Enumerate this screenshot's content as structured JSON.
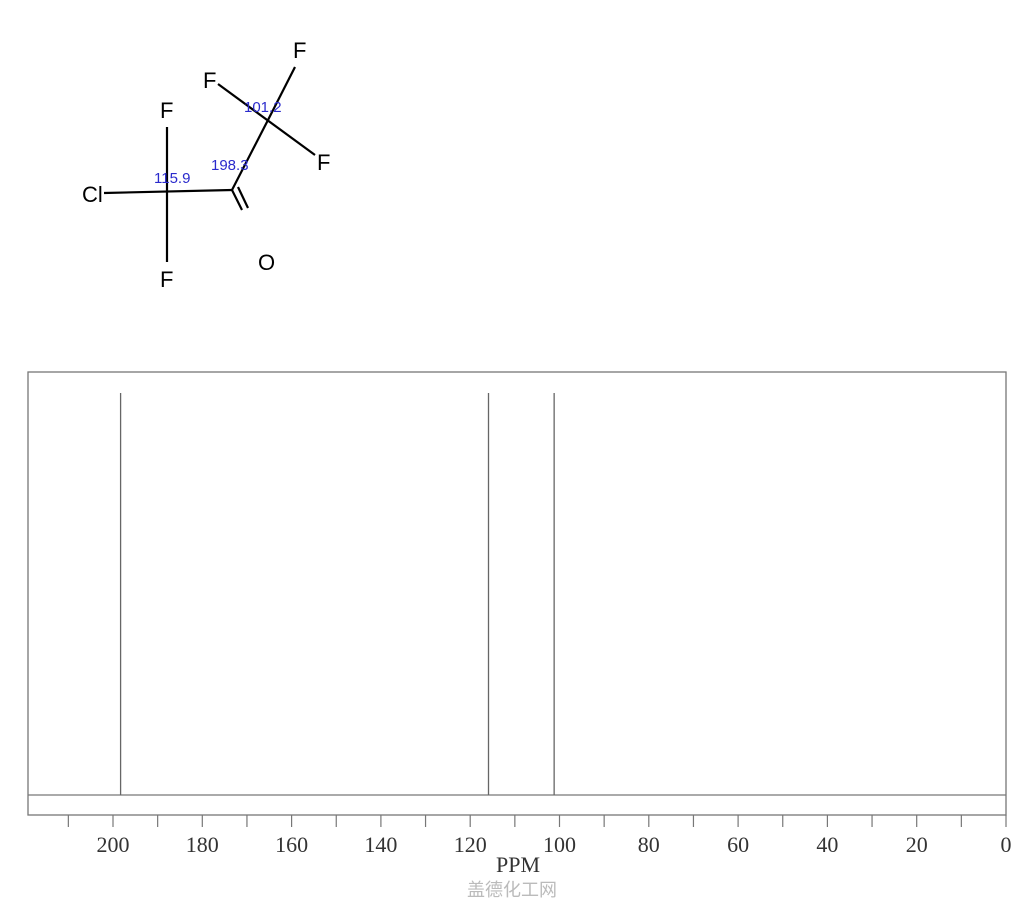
{
  "molecule": {
    "atoms": [
      "Cl",
      "F",
      "F",
      "F",
      "F",
      "F",
      "O"
    ],
    "shift_labels": [
      "115.9",
      "198.3",
      "101.2"
    ]
  },
  "chart_data": {
    "type": "line",
    "title": "",
    "xlabel": "PPM",
    "ylabel": "",
    "xlim": [
      219,
      0
    ],
    "x_reversed": true,
    "grid": false,
    "x_ticks": [
      200,
      180,
      160,
      140,
      120,
      100,
      80,
      60,
      40,
      20,
      0
    ],
    "x_tick_labels": [
      "200",
      "180",
      "160",
      "140",
      "120",
      "100",
      "80",
      "60",
      "40",
      "20",
      "0"
    ],
    "minor_tick_step": 10,
    "peaks": [
      {
        "ppm": 198.3,
        "intensity": 1.0
      },
      {
        "ppm": 115.9,
        "intensity": 1.0
      },
      {
        "ppm": 101.2,
        "intensity": 1.0
      }
    ]
  },
  "watermark": "盖德化工网",
  "colors": {
    "shift_label": "#2a2acc",
    "peak": "#666666",
    "frame": "#777777"
  }
}
